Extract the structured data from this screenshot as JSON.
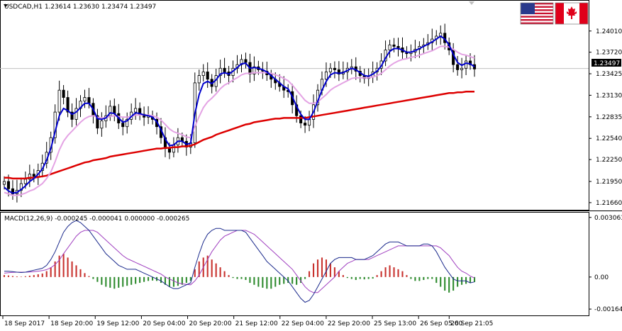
{
  "chart_data": [
    {
      "type": "candlestick",
      "header": "USDCAD,H1  1.23614 1.23630 1.23474 1.23497",
      "current_price_label": "1.23497",
      "current_price": 1.23497,
      "y_ticks": [
        "1.24010",
        "1.23720",
        "1.23425",
        "1.23130",
        "1.22835",
        "1.22540",
        "1.22250",
        "1.21950",
        "1.21660"
      ],
      "y_tick_values": [
        1.2401,
        1.2372,
        1.23425,
        1.2313,
        1.22835,
        1.2254,
        1.2225,
        1.2195,
        1.2166
      ],
      "ylim": [
        1.2162,
        1.2426
      ],
      "x_labels": [
        "18 Sep 2017",
        "18 Sep 20:00",
        "19 Sep 12:00",
        "20 Sep 04:00",
        "20 Sep 20:00",
        "21 Sep 12:00",
        "22 Sep 04:00",
        "22 Sep 20:00",
        "25 Sep 13:00",
        "26 Sep 05:00",
        "26 Sep 21:05"
      ],
      "close_series": [
        1.2195,
        1.2185,
        1.2178,
        1.2183,
        1.2192,
        1.2198,
        1.2205,
        1.2202,
        1.221,
        1.222,
        1.2235,
        1.2255,
        1.229,
        1.232,
        1.231,
        1.229,
        1.228,
        1.2295,
        1.2305,
        1.231,
        1.2302,
        1.2285,
        1.2268,
        1.2278,
        1.2285,
        1.2298,
        1.2288,
        1.2275,
        1.227,
        1.228,
        1.229,
        1.2295,
        1.2287,
        1.2283,
        1.2285,
        1.228,
        1.227,
        1.2255,
        1.224,
        1.2235,
        1.2245,
        1.2255,
        1.225,
        1.2242,
        1.2248,
        1.233,
        1.234,
        1.2345,
        1.2335,
        1.2325,
        1.234,
        1.235,
        1.2345,
        1.234,
        1.235,
        1.2355,
        1.2362,
        1.2358,
        1.2342,
        1.2352,
        1.2348,
        1.2346,
        1.2341,
        1.2335,
        1.233,
        1.2325,
        1.232,
        1.2318,
        1.23,
        1.2285,
        1.2275,
        1.2272,
        1.228,
        1.23,
        1.232,
        1.2335,
        1.2345,
        1.235,
        1.2348,
        1.2342,
        1.2345,
        1.235,
        1.2352,
        1.2346,
        1.234,
        1.2336,
        1.2338,
        1.2345,
        1.235,
        1.236,
        1.2375,
        1.2382,
        1.238,
        1.2378,
        1.2372,
        1.237,
        1.2372,
        1.2376,
        1.238,
        1.2382,
        1.2385,
        1.239,
        1.2394,
        1.2398,
        1.2385,
        1.2375,
        1.2355,
        1.2348,
        1.235,
        1.236,
        1.2355,
        1.2349
      ],
      "series": [
        {
          "name": "",
          "color": "#0000cc",
          "values": [
            1.2187,
            1.2182,
            1.2179,
            1.218,
            1.2184,
            1.2189,
            1.2195,
            1.2199,
            1.2205,
            1.2212,
            1.2224,
            1.224,
            1.2263,
            1.2285,
            1.2295,
            1.2292,
            1.2287,
            1.229,
            1.2296,
            1.2302,
            1.2302,
            1.2294,
            1.2281,
            1.228,
            1.2282,
            1.2289,
            1.2288,
            1.2282,
            1.2276,
            1.2278,
            1.2284,
            1.2289,
            1.2288,
            1.2286,
            1.2285,
            1.2283,
            1.2277,
            1.2266,
            1.2253,
            1.2244,
            1.2245,
            1.225,
            1.225,
            1.2246,
            1.2247,
            1.2288,
            1.2314,
            1.2329,
            1.2332,
            1.2329,
            1.2334,
            1.2342,
            1.2344,
            1.2342,
            1.2346,
            1.2351,
            1.2356,
            1.2357,
            1.235,
            1.2351,
            1.235,
            1.2348,
            1.2345,
            1.234,
            1.2335,
            1.233,
            1.2325,
            1.2322,
            1.2311,
            1.2298,
            1.2287,
            1.228,
            1.228,
            1.229,
            1.2305,
            1.232,
            1.2332,
            1.2341,
            1.2344,
            1.2343,
            1.2344,
            1.2347,
            1.235,
            1.2348,
            1.2344,
            1.234,
            1.2339,
            1.2342,
            1.2346,
            1.2353,
            1.2364,
            1.2373,
            1.2377,
            1.2377,
            1.2375,
            1.2372,
            1.2372,
            1.2374,
            1.2377,
            1.238,
            1.2383,
            1.2386,
            1.239,
            1.2394,
            1.239,
            1.2382,
            1.2369,
            1.2358,
            1.2354,
            1.2357,
            1.2356,
            1.2352
          ]
        },
        {
          "name": "",
          "color": "#e4a3e4",
          "values": [
            1.218,
            1.2178,
            1.2176,
            1.2176,
            1.2177,
            1.2179,
            1.2182,
            1.2184,
            1.2188,
            1.2192,
            1.2199,
            1.2208,
            1.2222,
            1.2238,
            1.225,
            1.2258,
            1.2264,
            1.227,
            1.2276,
            1.2281,
            1.2284,
            1.2285,
            1.2283,
            1.2282,
            1.2282,
            1.2284,
            1.2285,
            1.2284,
            1.2283,
            1.2283,
            1.2284,
            1.2286,
            1.2286,
            1.2286,
            1.2286,
            1.2285,
            1.2283,
            1.2279,
            1.2273,
            1.2267,
            1.2263,
            1.2261,
            1.2259,
            1.2256,
            1.2255,
            1.227,
            1.2284,
            1.2296,
            1.2304,
            1.2309,
            1.2315,
            1.2322,
            1.2327,
            1.233,
            1.2334,
            1.2337,
            1.2341,
            1.2343,
            1.2343,
            1.2344,
            1.2344,
            1.2344,
            1.2344,
            1.2343,
            1.2341,
            1.2339,
            1.2336,
            1.2333,
            1.2327,
            1.232,
            1.2313,
            1.2306,
            1.2302,
            1.2302,
            1.2304,
            1.2309,
            1.2314,
            1.232,
            1.2324,
            1.2327,
            1.233,
            1.2333,
            1.2336,
            1.2337,
            1.2337,
            1.2337,
            1.2337,
            1.2338,
            1.234,
            1.2343,
            1.2348,
            1.2353,
            1.2357,
            1.236,
            1.2362,
            1.2363,
            1.2365,
            1.2366,
            1.2368,
            1.237,
            1.2372,
            1.2374,
            1.2377,
            1.238,
            1.238,
            1.2379,
            1.2376,
            1.2372,
            1.2369,
            1.2368,
            1.2366,
            1.2364
          ]
        },
        {
          "name": "",
          "color": "#dd0000",
          "values": [
            1.22,
            1.22,
            1.2199,
            1.2199,
            1.2199,
            1.2199,
            1.22,
            1.22,
            1.2201,
            1.2202,
            1.2203,
            1.2205,
            1.2207,
            1.2209,
            1.2211,
            1.2213,
            1.2215,
            1.2217,
            1.2219,
            1.2221,
            1.2222,
            1.2224,
            1.2225,
            1.2226,
            1.2227,
            1.2229,
            1.223,
            1.2231,
            1.2232,
            1.2233,
            1.2234,
            1.2235,
            1.2236,
            1.2237,
            1.2238,
            1.2239,
            1.224,
            1.224,
            1.2241,
            1.2241,
            1.2242,
            1.2242,
            1.2243,
            1.2243,
            1.2244,
            1.2246,
            1.2249,
            1.2252,
            1.2254,
            1.2256,
            1.2259,
            1.2261,
            1.2263,
            1.2265,
            1.2267,
            1.2269,
            1.2271,
            1.2273,
            1.2274,
            1.2276,
            1.2277,
            1.2278,
            1.2279,
            1.228,
            1.2281,
            1.2281,
            1.2282,
            1.2282,
            1.2282,
            1.2282,
            1.2282,
            1.2282,
            1.2283,
            1.2284,
            1.2285,
            1.2286,
            1.2287,
            1.2288,
            1.2289,
            1.229,
            1.2291,
            1.2292,
            1.2293,
            1.2294,
            1.2295,
            1.2296,
            1.2297,
            1.2298,
            1.2299,
            1.23,
            1.2301,
            1.2302,
            1.2303,
            1.2304,
            1.2305,
            1.2306,
            1.2307,
            1.2308,
            1.2309,
            1.231,
            1.2311,
            1.2312,
            1.2313,
            1.2314,
            1.2315,
            1.2316,
            1.2316,
            1.2317,
            1.2317,
            1.2318,
            1.2318,
            1.2318
          ]
        }
      ],
      "flags": [
        "us-flag-icon",
        "canada-flag-icon"
      ]
    },
    {
      "type": "macd",
      "header": "MACD(12,26,9) -0.000245 -0.000041 0.000000 -0.000265",
      "y_ticks": [
        "0.003063",
        "0.00",
        "-0.001648"
      ],
      "y_tick_values": [
        0.003063,
        0.0,
        -0.001648
      ],
      "ylim": [
        -0.0019,
        0.0032
      ],
      "histogram": [
        0.0001,
        8e-05,
        5e-05,
        3e-05,
        2e-05,
        4e-05,
        7e-05,
        0.0001,
        0.00014,
        0.00018,
        0.0003,
        0.0005,
        0.0008,
        0.0011,
        0.0012,
        0.001,
        0.0008,
        0.0006,
        0.0004,
        0.0002,
        5e-05,
        -0.0001,
        -0.00025,
        -0.0004,
        -0.0005,
        -0.00055,
        -0.0006,
        -0.00055,
        -0.0005,
        -0.00045,
        -0.0004,
        -0.00035,
        -0.0003,
        -0.00025,
        -0.0002,
        -0.00018,
        -0.0002,
        -0.0003,
        -0.0004,
        -0.0005,
        -0.0005,
        -0.00045,
        -0.0004,
        -0.0003,
        -0.0002,
        0.0004,
        0.0008,
        0.001,
        0.0011,
        0.0009,
        0.0007,
        0.0005,
        0.0003,
        0.0001,
        -5e-05,
        -0.0001,
        -0.0001,
        -0.00015,
        -0.0003,
        -0.0004,
        -0.0005,
        -0.00055,
        -0.0006,
        -0.0006,
        -0.0005,
        -0.0004,
        -0.00035,
        -0.0003,
        -0.00035,
        -0.0004,
        -0.0003,
        -0.0001,
        0.0003,
        0.0007,
        0.0009,
        0.001,
        0.0009,
        0.0007,
        0.0005,
        0.0003,
        0.0001,
        -5e-05,
        -0.0001,
        -0.00015,
        -0.0001,
        -0.00012,
        -0.0001,
        -8e-05,
        0.0001,
        0.0003,
        0.0005,
        0.0006,
        0.0005,
        0.0004,
        0.0003,
        0.0001,
        -0.0001,
        -0.0002,
        -0.0002,
        -0.00015,
        -0.0001,
        -0.0001,
        -0.0003,
        -0.0005,
        -0.0007,
        -0.0008,
        -0.0007,
        -0.0005,
        -0.0004,
        -0.00035,
        -0.0003,
        -0.00026
      ],
      "macd_line": [
        0.0003,
        0.0003,
        0.00028,
        0.00025,
        0.00023,
        0.00025,
        0.0003,
        0.00035,
        0.0004,
        0.00045,
        0.0006,
        0.0009,
        0.0013,
        0.0018,
        0.0023,
        0.0026,
        0.0028,
        0.0029,
        0.0028,
        0.0026,
        0.0024,
        0.0021,
        0.0018,
        0.0015,
        0.0012,
        0.001,
        0.0008,
        0.0006,
        0.0005,
        0.0004,
        0.0004,
        0.0004,
        0.0003,
        0.0002,
        0.0001,
        0.0,
        -0.0001,
        -0.0002,
        -0.00035,
        -0.0005,
        -0.0006,
        -0.0006,
        -0.0005,
        -0.0004,
        -0.0003,
        0.0005,
        0.0012,
        0.0018,
        0.0022,
        0.0024,
        0.0025,
        0.0025,
        0.0024,
        0.0024,
        0.0024,
        0.0024,
        0.0024,
        0.0023,
        0.002,
        0.0017,
        0.0014,
        0.0011,
        0.0008,
        0.0006,
        0.0004,
        0.0002,
        0.0,
        -0.0002,
        -0.0005,
        -0.0008,
        -0.0011,
        -0.0013,
        -0.0012,
        -0.0009,
        -0.0005,
        -0.0001,
        0.0003,
        0.0007,
        0.0009,
        0.001,
        0.001,
        0.001,
        0.001,
        0.0009,
        0.0009,
        0.0009,
        0.001,
        0.0011,
        0.0013,
        0.0015,
        0.0017,
        0.0018,
        0.0018,
        0.0018,
        0.0017,
        0.0016,
        0.0016,
        0.0016,
        0.0016,
        0.0017,
        0.0017,
        0.0016,
        0.0013,
        0.0009,
        0.0005,
        0.0002,
        -0.0001,
        -0.0002,
        -0.0002,
        -0.0002,
        -0.0003,
        -0.00025
      ],
      "signal_line": [
        0.0002,
        0.00022,
        0.00024,
        0.00025,
        0.00025,
        0.00025,
        0.00026,
        0.00028,
        0.0003,
        0.00033,
        0.00038,
        0.00048,
        0.00064,
        0.00087,
        0.0012,
        0.0015,
        0.0018,
        0.0021,
        0.0023,
        0.0024,
        0.0024,
        0.0024,
        0.0023,
        0.0021,
        0.0019,
        0.0017,
        0.0015,
        0.0013,
        0.0011,
        0.00095,
        0.00085,
        0.00075,
        0.00065,
        0.00055,
        0.00045,
        0.00035,
        0.00025,
        0.00015,
        0.0,
        -0.0001,
        -0.0002,
        -0.0003,
        -0.00035,
        -0.00038,
        -0.0004,
        -0.0002,
        0.0001,
        0.0005,
        0.0009,
        0.0013,
        0.0016,
        0.0019,
        0.0021,
        0.0022,
        0.0023,
        0.0024,
        0.0024,
        0.0024,
        0.0023,
        0.0022,
        0.002,
        0.0018,
        0.0016,
        0.0014,
        0.0012,
        0.001,
        0.0008,
        0.0006,
        0.0004,
        0.0001,
        -0.0002,
        -0.0005,
        -0.0007,
        -0.0008,
        -0.0008,
        -0.0006,
        -0.0004,
        -0.0002,
        0.0,
        0.0003,
        0.0005,
        0.0007,
        0.0008,
        0.0009,
        0.0009,
        0.0009,
        0.0009,
        0.001,
        0.0011,
        0.0012,
        0.0013,
        0.0014,
        0.0015,
        0.0016,
        0.0016,
        0.0016,
        0.0016,
        0.0016,
        0.0016,
        0.0016,
        0.0016,
        0.0016,
        0.0016,
        0.0015,
        0.0013,
        0.0011,
        0.0008,
        0.0005,
        0.0003,
        0.0002,
        5e-05,
        -5e-05
      ]
    }
  ]
}
